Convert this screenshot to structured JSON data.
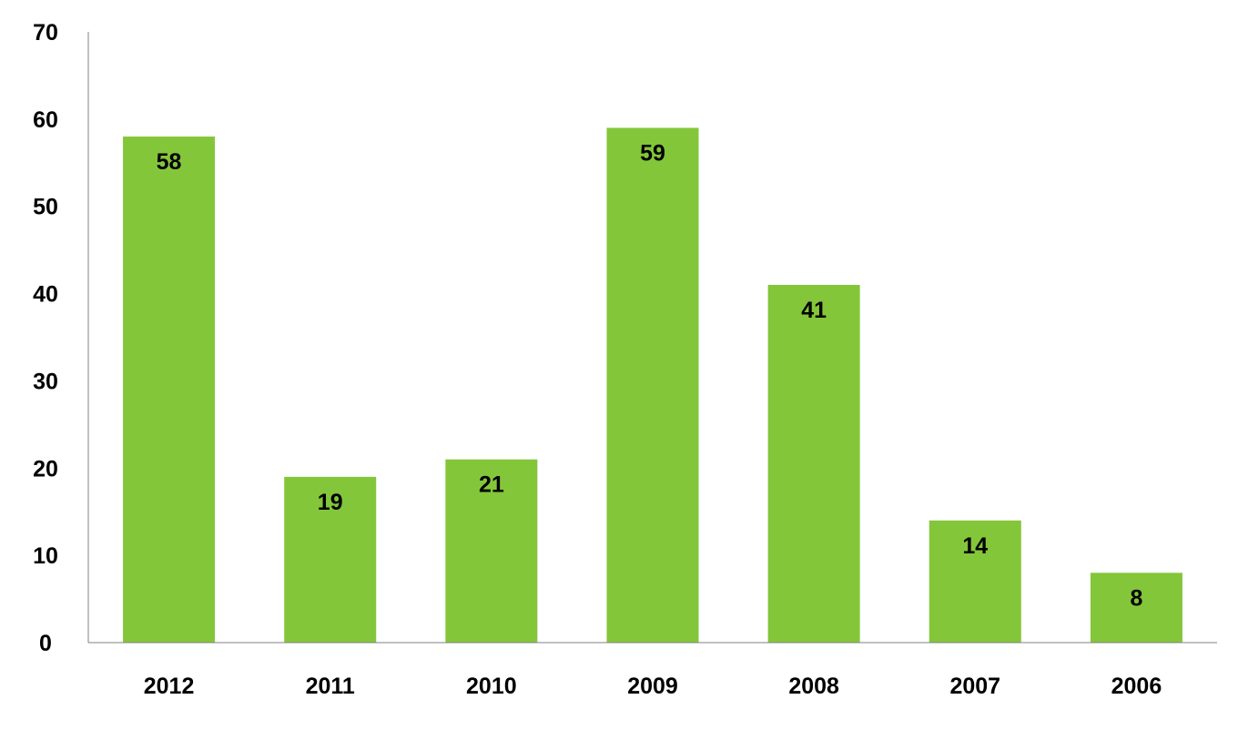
{
  "chart_data": {
    "type": "bar",
    "title": "",
    "xlabel": "",
    "ylabel": "",
    "categories": [
      "2012",
      "2011",
      "2010",
      "2009",
      "2008",
      "2007",
      "2006"
    ],
    "values": [
      58,
      19,
      21,
      59,
      41,
      14,
      8
    ],
    "data_labels": [
      "58",
      "19",
      "21",
      "59",
      "41",
      "14",
      "8"
    ],
    "yticks": [
      "0",
      "10",
      "20",
      "30",
      "40",
      "50",
      "60",
      "70"
    ],
    "ylim": [
      0,
      70
    ],
    "grid": false,
    "legend": "none",
    "colors": {
      "bar": "#84C63A",
      "axis": "#808080",
      "text": "#000000"
    }
  }
}
